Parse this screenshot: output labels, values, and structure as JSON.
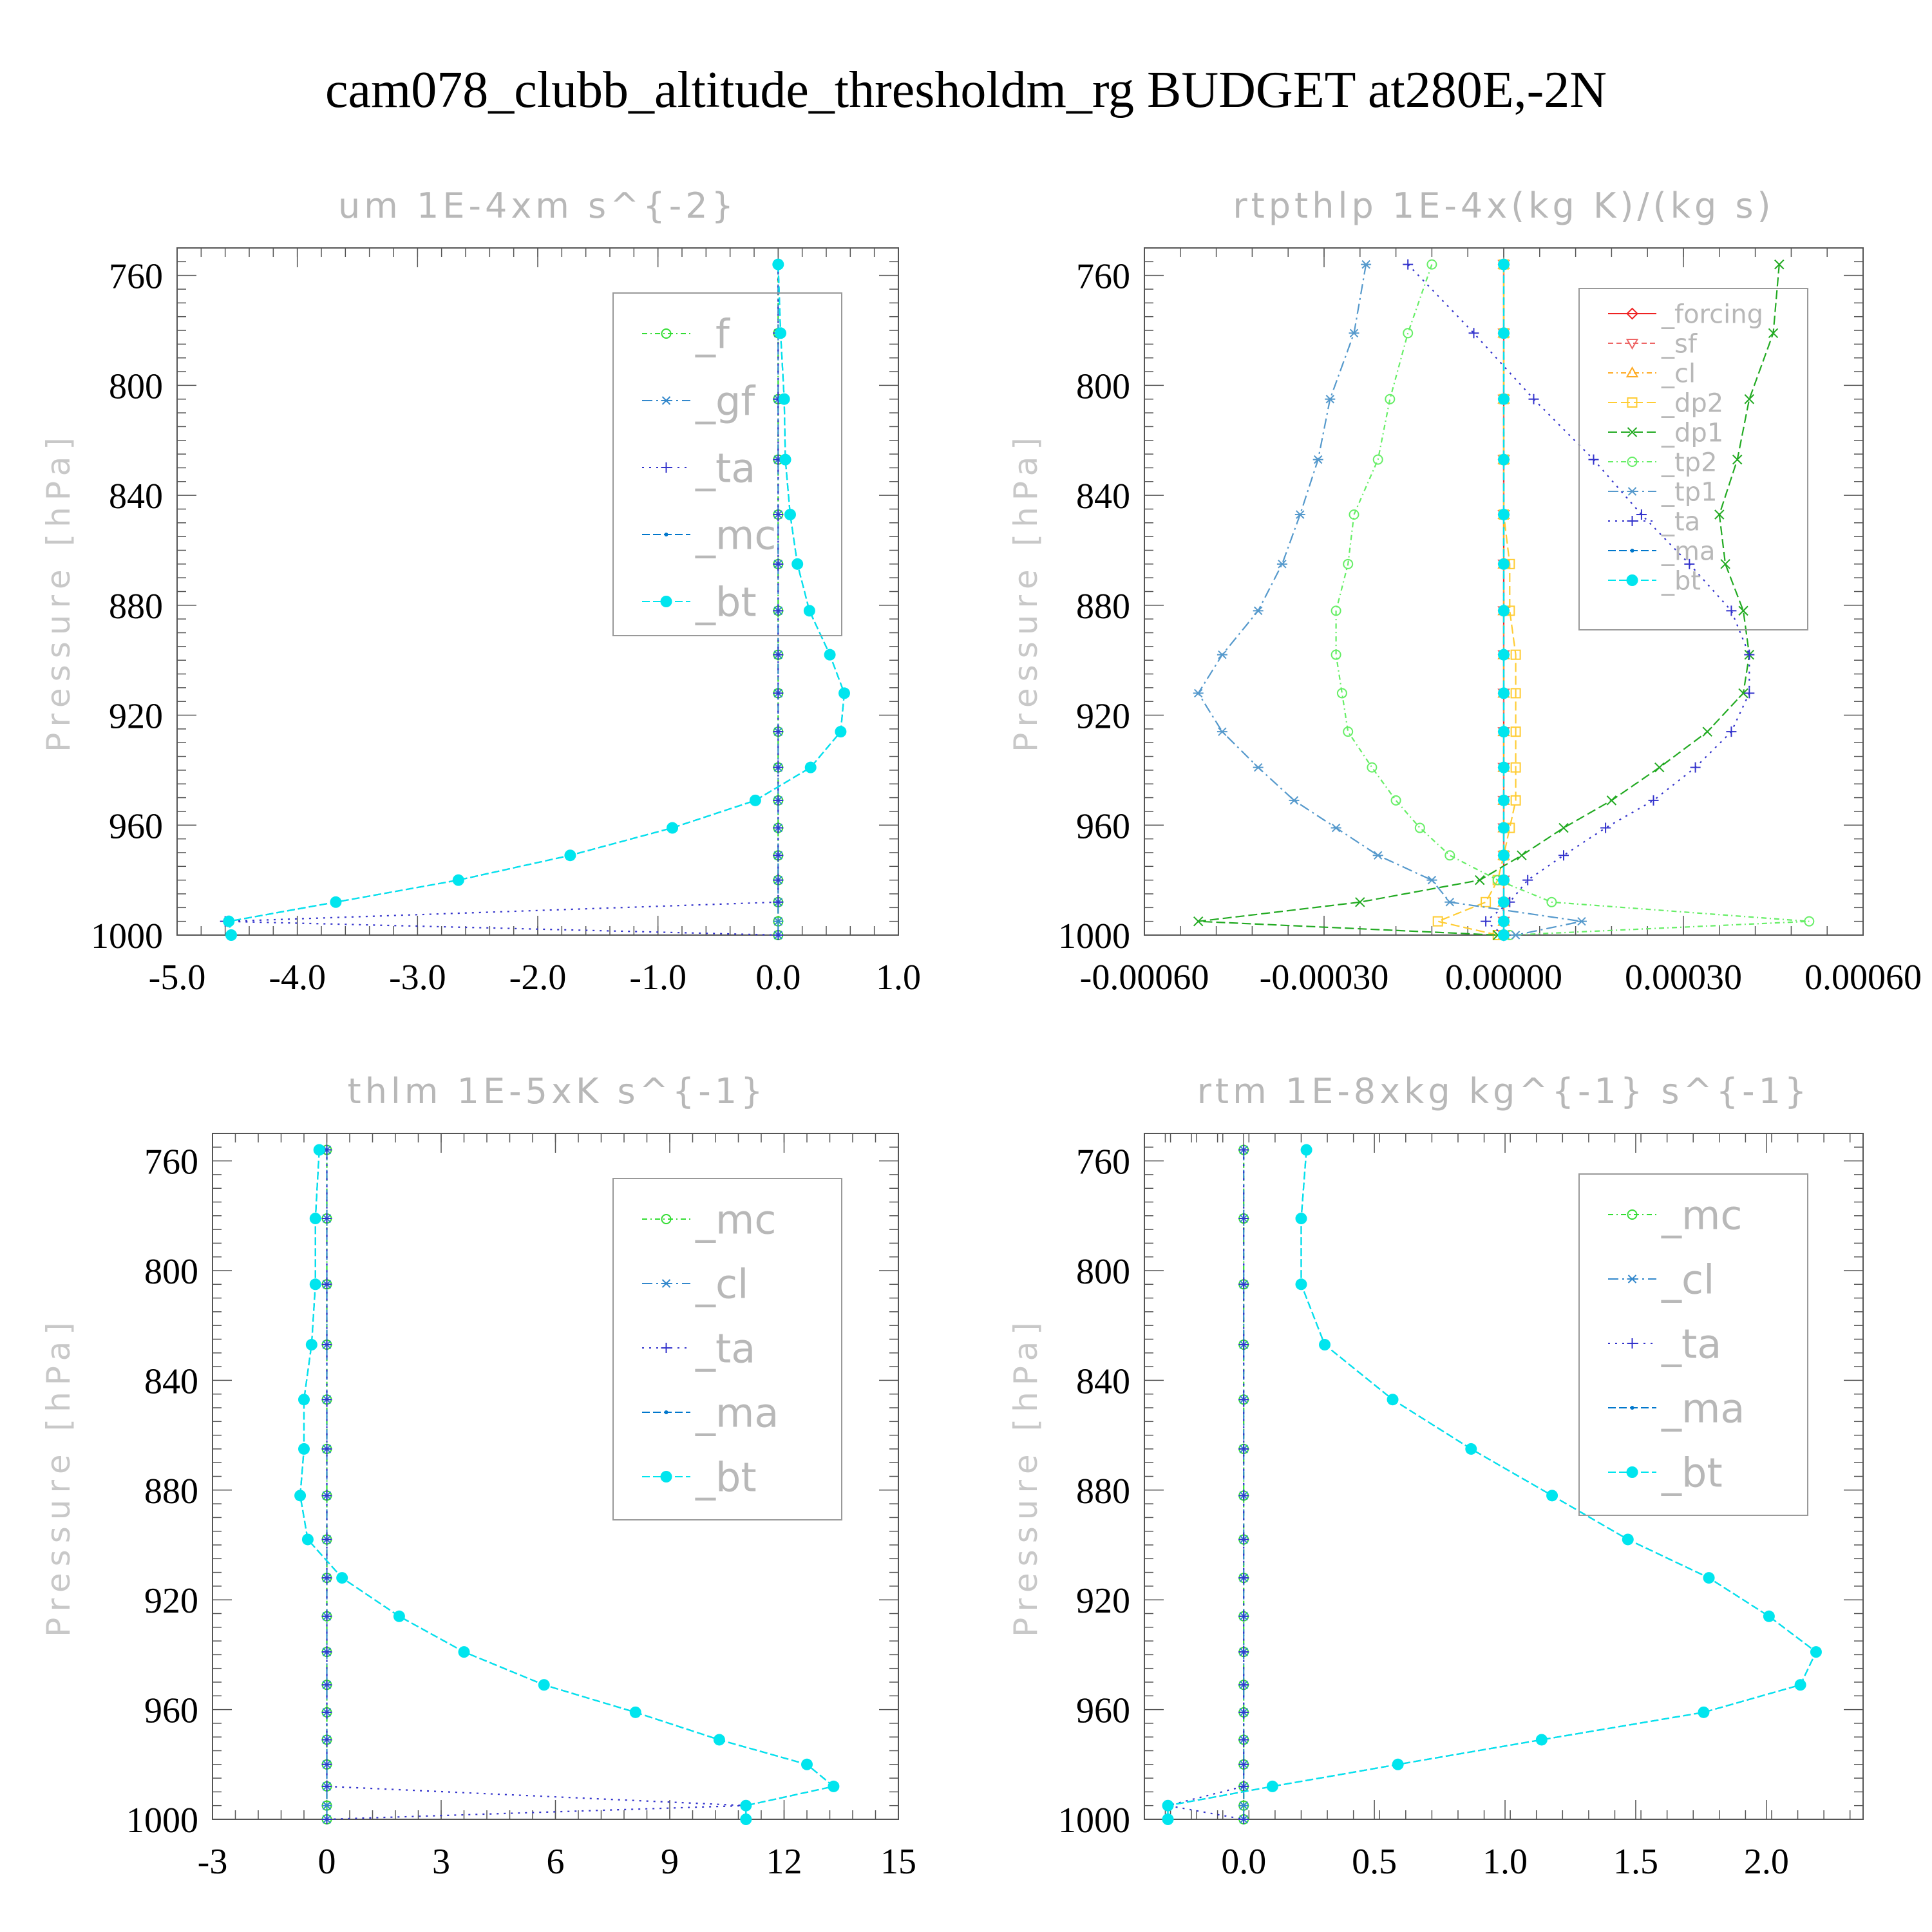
{
  "title": "cam078_clubb_altitude_thresholdm_rg  BUDGET at280E,-2N",
  "chart_data": [
    {
      "type": "line",
      "title": "um  1E-4xm s^{-2}",
      "ylabel": "Pressure [hPa]",
      "xlim": [
        -5.0,
        1.0
      ],
      "ylim": [
        750,
        1000
      ],
      "xticks": [
        "-5.0",
        "-4.0",
        "-3.0",
        "-2.0",
        "-1.0",
        "0.0",
        "1.0"
      ],
      "xtick_values": [
        -5,
        -4,
        -3,
        -2,
        -1,
        0,
        1
      ],
      "yticks": [
        "760",
        "800",
        "840",
        "880",
        "920",
        "960",
        "1000"
      ],
      "y": [
        756,
        781,
        805,
        827,
        847,
        865,
        882,
        898,
        912,
        926,
        939,
        951,
        961,
        971,
        980,
        988,
        995,
        1000
      ],
      "series": [
        {
          "name": "_f",
          "color": "#33dd33",
          "marker": "circle",
          "dash": "8,5,2,5",
          "values": [
            0,
            0,
            0,
            0,
            0,
            0,
            0,
            0,
            0,
            0,
            0,
            0,
            0,
            0,
            0,
            0,
            0,
            0
          ]
        },
        {
          "name": "_gf",
          "color": "#3388cc",
          "marker": "star",
          "dash": "16,6,3,6",
          "values": [
            0,
            0,
            0,
            0,
            0,
            0,
            0,
            0,
            0,
            0,
            0,
            0,
            0,
            0,
            0,
            0,
            0,
            0
          ]
        },
        {
          "name": "_ta",
          "color": "#3333cc",
          "marker": "plus",
          "dash": "3,8",
          "values": [
            0,
            0,
            0,
            0,
            0,
            0,
            0,
            0,
            0,
            0,
            0,
            0,
            0,
            0,
            0,
            0,
            -4.6,
            0
          ]
        },
        {
          "name": "_mc",
          "color": "#0077cc",
          "marker": "dot",
          "dash": "12,5",
          "values": [
            0,
            0.02,
            0.05,
            0.06,
            0.1,
            0.16,
            0.26,
            0.43,
            0.55,
            0.52,
            0.27,
            -0.19,
            -0.88,
            -1.73,
            -2.66,
            -3.68,
            -4.57,
            -4.55
          ]
        },
        {
          "name": "_bt",
          "color": "#00e5ee",
          "marker": "bigdot",
          "dash": "12,5",
          "values": [
            0,
            0.02,
            0.05,
            0.06,
            0.1,
            0.16,
            0.26,
            0.43,
            0.55,
            0.52,
            0.27,
            -0.19,
            -0.88,
            -1.73,
            -2.66,
            -3.68,
            -4.57,
            -4.55
          ]
        }
      ]
    },
    {
      "type": "line",
      "title": "rtpthlp  1E-4x(kg K)/(kg s)",
      "ylabel": "Pressure [hPa]",
      "xlim": [
        -0.0006,
        0.0006
      ],
      "ylim": [
        750,
        1000
      ],
      "xticks": [
        "-0.00060",
        "-0.00030",
        "0.00000",
        "0.00030",
        "0.00060"
      ],
      "xtick_values": [
        -0.0006,
        -0.0003,
        0,
        0.0003,
        0.0006
      ],
      "yticks": [
        "760",
        "800",
        "840",
        "880",
        "920",
        "960",
        "1000"
      ],
      "y": [
        756,
        781,
        805,
        827,
        847,
        865,
        882,
        898,
        912,
        926,
        939,
        951,
        961,
        971,
        980,
        988,
        995,
        1000
      ],
      "series": [
        {
          "name": "_forcing",
          "color": "#ee2222",
          "marker": "diamond",
          "dash": "",
          "values": [
            0,
            0,
            0,
            0,
            0,
            0,
            0,
            0,
            0,
            0,
            0,
            0,
            0,
            0,
            0,
            0,
            0,
            0
          ]
        },
        {
          "name": "_sf",
          "color": "#ee6666",
          "marker": "triangle-down",
          "dash": "8,5",
          "values": [
            0,
            0,
            0,
            0,
            0,
            0,
            0,
            0,
            0,
            0,
            0,
            0,
            0,
            0,
            0,
            0,
            0,
            0
          ]
        },
        {
          "name": "_cl",
          "color": "#ffaa22",
          "marker": "triangle",
          "dash": "8,5,2,5",
          "values": [
            0,
            0,
            0,
            0,
            0,
            0,
            0,
            0,
            0,
            0,
            0,
            0,
            0,
            0,
            0,
            0,
            0,
            0
          ]
        },
        {
          "name": "_dp2",
          "color": "#ffcc33",
          "marker": "square",
          "dash": "14,6",
          "values": [
            0,
            0,
            0,
            0,
            0,
            1e-05,
            1e-05,
            2e-05,
            2e-05,
            2e-05,
            2e-05,
            2e-05,
            1e-05,
            0,
            -1e-05,
            -3e-05,
            -0.00011,
            -1e-05
          ]
        },
        {
          "name": "_dp1",
          "color": "#22aa22",
          "marker": "x",
          "dash": "14,6",
          "values": [
            0.00046,
            0.00045,
            0.00041,
            0.00039,
            0.00036,
            0.00037,
            0.0004,
            0.00041,
            0.0004,
            0.00034,
            0.00026,
            0.00018,
            0.0001,
            3e-05,
            -4e-05,
            -0.00024,
            -0.00051,
            -1e-05
          ]
        },
        {
          "name": "_tp2",
          "color": "#66ee66",
          "marker": "circle",
          "dash": "8,5,2,5",
          "values": [
            -0.00012,
            -0.00016,
            -0.00019,
            -0.00021,
            -0.00025,
            -0.00026,
            -0.00028,
            -0.00028,
            -0.00027,
            -0.00026,
            -0.00022,
            -0.00018,
            -0.00014,
            -9e-05,
            -1e-05,
            8e-05,
            0.00051,
            1e-05
          ]
        },
        {
          "name": "_tp1",
          "color": "#5599cc",
          "marker": "star",
          "dash": "16,6,3,6",
          "values": [
            -0.00023,
            -0.00025,
            -0.00029,
            -0.00031,
            -0.00034,
            -0.00037,
            -0.00041,
            -0.00047,
            -0.00051,
            -0.00047,
            -0.00041,
            -0.00035,
            -0.00028,
            -0.00021,
            -0.00012,
            -9e-05,
            0.00013,
            2e-05
          ]
        },
        {
          "name": "_ta",
          "color": "#3333cc",
          "marker": "plus",
          "dash": "3,8",
          "values": [
            -0.00016,
            -5e-05,
            5e-05,
            0.00015,
            0.00023,
            0.00031,
            0.00038,
            0.00041,
            0.00041,
            0.00038,
            0.00032,
            0.00025,
            0.00017,
            0.0001,
            4e-05,
            1e-05,
            -3e-05,
            0
          ]
        },
        {
          "name": "_ma",
          "color": "#0077cc",
          "marker": "dot",
          "dash": "12,5",
          "values": [
            0,
            0,
            0,
            0,
            0,
            0,
            0,
            0,
            0,
            0,
            0,
            0,
            0,
            0,
            0,
            0,
            0,
            0
          ]
        },
        {
          "name": "_bt",
          "color": "#00e5ee",
          "marker": "bigdot",
          "dash": "12,5",
          "values": [
            0,
            0,
            0,
            0,
            0,
            0,
            0,
            0,
            0,
            0,
            0,
            0,
            0,
            0,
            0,
            0,
            0,
            0
          ]
        }
      ]
    },
    {
      "type": "line",
      "title": "thlm  1E-5xK s^{-1}",
      "ylabel": "Pressure [hPa]",
      "xlim": [
        -3,
        15
      ],
      "ylim": [
        750,
        1000
      ],
      "xticks": [
        "-3",
        "0",
        "3",
        "6",
        "9",
        "12",
        "15"
      ],
      "xtick_values": [
        -3,
        0,
        3,
        6,
        9,
        12,
        15
      ],
      "yticks": [
        "760",
        "800",
        "840",
        "880",
        "920",
        "960",
        "1000"
      ],
      "y": [
        756,
        781,
        805,
        827,
        847,
        865,
        882,
        898,
        912,
        926,
        939,
        951,
        961,
        971,
        980,
        988,
        995,
        1000
      ],
      "series": [
        {
          "name": "_mc",
          "color": "#33dd33",
          "marker": "circle",
          "dash": "8,5,2,5",
          "values": [
            0,
            0,
            0,
            0,
            0,
            0,
            0,
            0,
            0,
            0,
            0,
            0,
            0,
            0,
            0,
            0,
            0,
            0
          ]
        },
        {
          "name": "_cl",
          "color": "#3388cc",
          "marker": "star",
          "dash": "16,6,3,6",
          "values": [
            0,
            0,
            0,
            0,
            0,
            0,
            0,
            0,
            0,
            0,
            0,
            0,
            0,
            0,
            0,
            0,
            0,
            0
          ]
        },
        {
          "name": "_ta",
          "color": "#3333cc",
          "marker": "plus",
          "dash": "3,8",
          "values": [
            0,
            0,
            0,
            0,
            0,
            0,
            0,
            0,
            0,
            0,
            0,
            0,
            0,
            0,
            0,
            0,
            11,
            0
          ]
        },
        {
          "name": "_ma",
          "color": "#0077cc",
          "marker": "dot",
          "dash": "12,5",
          "values": [
            -0.2,
            -0.3,
            -0.3,
            -0.4,
            -0.6,
            -0.6,
            -0.7,
            -0.5,
            0.4,
            1.9,
            3.6,
            5.7,
            8.1,
            10.3,
            12.6,
            13.3,
            11,
            11
          ]
        },
        {
          "name": "_bt",
          "color": "#00e5ee",
          "marker": "bigdot",
          "dash": "12,5",
          "values": [
            -0.2,
            -0.3,
            -0.3,
            -0.4,
            -0.6,
            -0.6,
            -0.7,
            -0.5,
            0.4,
            1.9,
            3.6,
            5.7,
            8.1,
            10.3,
            12.6,
            13.3,
            11,
            11
          ]
        }
      ]
    },
    {
      "type": "line",
      "title": "rtm  1E-8xkg kg^{-1} s^{-1}",
      "ylabel": "Pressure [hPa]",
      "xlim": [
        -0.38,
        2.37
      ],
      "ylim": [
        750,
        1000
      ],
      "xticks": [
        "0.0",
        "0.5",
        "1.0",
        "1.5",
        "2.0"
      ],
      "xtick_values": [
        0,
        0.5,
        1.0,
        1.5,
        2.0
      ],
      "yticks": [
        "760",
        "800",
        "840",
        "880",
        "920",
        "960",
        "1000"
      ],
      "y": [
        756,
        781,
        805,
        827,
        847,
        865,
        882,
        898,
        912,
        926,
        939,
        951,
        961,
        971,
        980,
        988,
        995,
        1000
      ],
      "series": [
        {
          "name": "_mc",
          "color": "#33dd33",
          "marker": "circle",
          "dash": "8,5,2,5",
          "values": [
            0,
            0,
            0,
            0,
            0,
            0,
            0,
            0,
            0,
            0,
            0,
            0,
            0,
            0,
            0,
            0,
            0,
            0
          ]
        },
        {
          "name": "_cl",
          "color": "#3388cc",
          "marker": "star",
          "dash": "16,6,3,6",
          "values": [
            0,
            0,
            0,
            0,
            0,
            0,
            0,
            0,
            0,
            0,
            0,
            0,
            0,
            0,
            0,
            0,
            0,
            0
          ]
        },
        {
          "name": "_ta",
          "color": "#3333cc",
          "marker": "plus",
          "dash": "3,8",
          "values": [
            0,
            0,
            0,
            0,
            0,
            0,
            0,
            0,
            0,
            0,
            0,
            0,
            0,
            0,
            0,
            0,
            -0.29,
            0
          ]
        },
        {
          "name": "_ma",
          "color": "#0077cc",
          "marker": "dot",
          "dash": "12,5",
          "values": [
            0.24,
            0.22,
            0.22,
            0.31,
            0.57,
            0.87,
            1.18,
            1.47,
            1.78,
            2.01,
            2.19,
            2.13,
            1.76,
            1.14,
            0.59,
            0.11,
            -0.29,
            -0.29
          ]
        },
        {
          "name": "_bt",
          "color": "#00e5ee",
          "marker": "bigdot",
          "dash": "12,5",
          "values": [
            0.24,
            0.22,
            0.22,
            0.31,
            0.57,
            0.87,
            1.18,
            1.47,
            1.78,
            2.01,
            2.19,
            2.13,
            1.76,
            1.14,
            0.59,
            0.11,
            -0.29,
            -0.29
          ]
        }
      ]
    }
  ]
}
